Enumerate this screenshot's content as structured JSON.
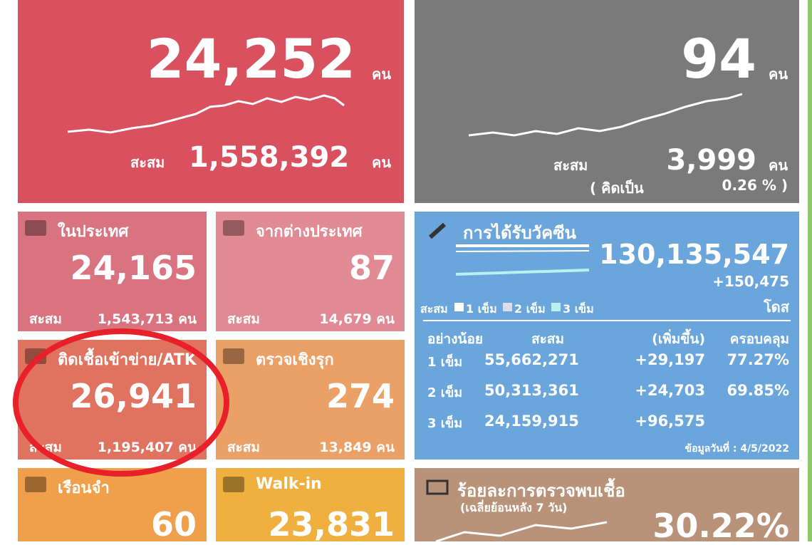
{
  "new_cases": {
    "value": "24,252",
    "unit": "คน",
    "cumulative_label": "สะสม",
    "cumulative": "1,558,392",
    "cumulative_unit": "คน"
  },
  "deaths": {
    "value": "94",
    "unit": "คน",
    "cumulative_label": "สะสม",
    "cumulative": "3,999",
    "cumulative_unit": "คน",
    "rate_label": "( คิดเป็น",
    "rate": "0.26 % )"
  },
  "tiles": [
    {
      "title": "ในประเทศ",
      "value": "24,165",
      "cumulative_label": "สะสม",
      "cumulative": "1,543,713 คน"
    },
    {
      "title": "จากต่างประเทศ",
      "value": "87",
      "cumulative_label": "สะสม",
      "cumulative": "14,679 คน"
    },
    {
      "title": "ติดเชื้อเข้าข่าย/ATK",
      "value": "26,941",
      "cumulative_label": "สะสม",
      "cumulative": "1,195,407 คน"
    },
    {
      "title": "ตรวจเชิงรุก",
      "value": "274",
      "cumulative_label": "สะสม",
      "cumulative": "13,849 คน"
    },
    {
      "title": "เรือนจำ",
      "value": "60"
    },
    {
      "title": "Walk-in",
      "value": "23,831"
    }
  ],
  "vaccine": {
    "title": "การได้รับวัคซีน",
    "total": "130,135,547",
    "increase": "+150,475",
    "unit": "โดส",
    "legend": [
      "สะสม",
      "1 เข็ม",
      "2 เข็ม",
      "3 เข็ม"
    ],
    "headers": [
      "อย่างน้อย",
      "สะสม",
      "(เพิ่มขึ้น)",
      "ครอบคลุม"
    ],
    "rows": [
      [
        "1 เข็ม",
        "55,662,271",
        "+29,197",
        "77.27%"
      ],
      [
        "2 เข็ม",
        "50,313,361",
        "+24,703",
        "69.85%"
      ],
      [
        "3 เข็ม",
        "24,159,915",
        "+96,575"
      ]
    ],
    "date": "ข้อมูลวันที่ : 4/5/2022"
  },
  "positivity": {
    "title": "ร้อยละการตรวจพบเชื้อ",
    "subtitle": "(เฉลี่ยย้อนหลัง 7 วัน)",
    "value": "30.22%"
  }
}
